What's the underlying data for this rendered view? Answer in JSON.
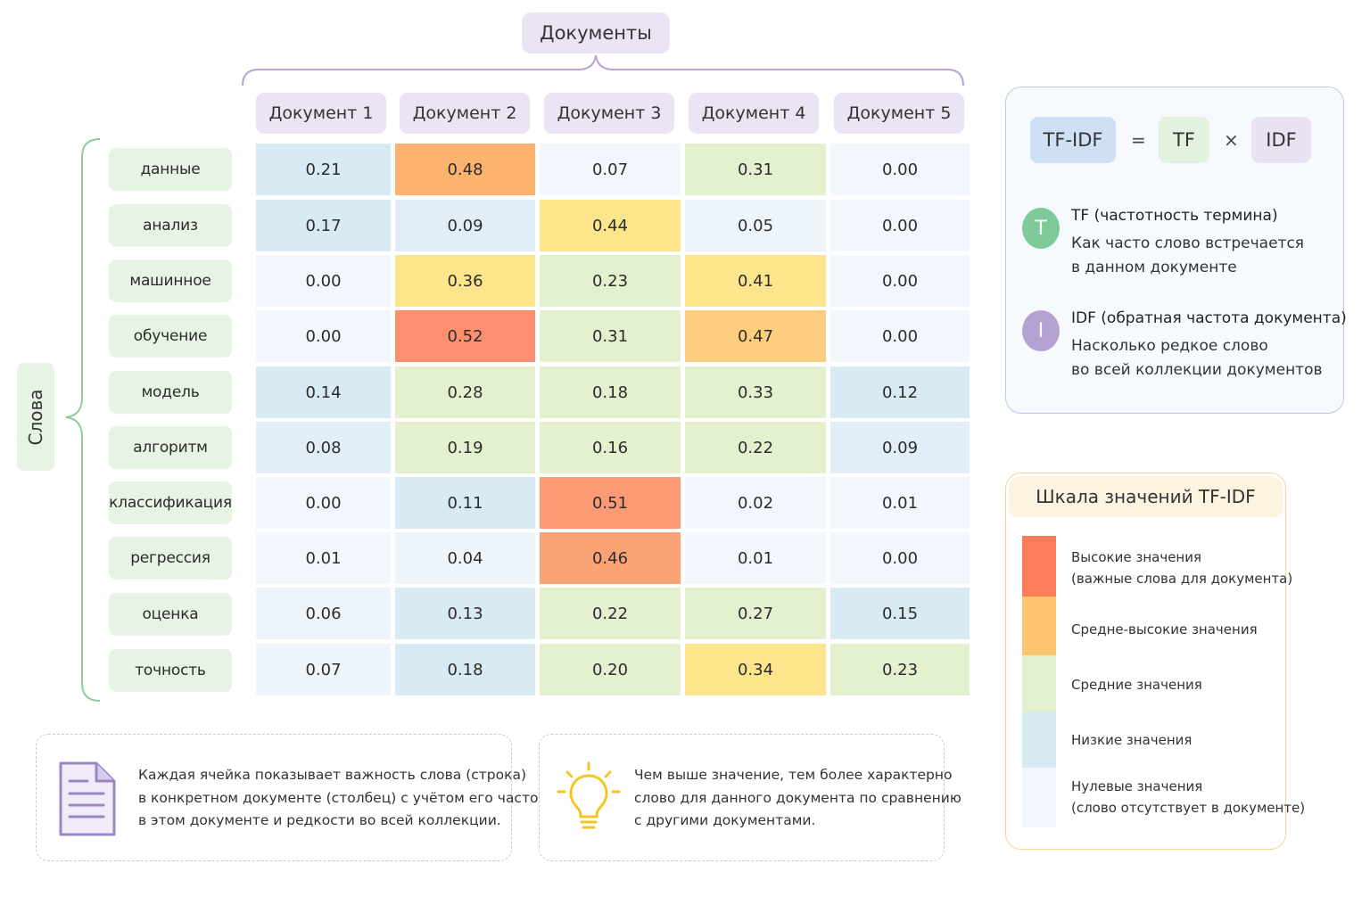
{
  "header": {
    "documents_label": "Документы"
  },
  "axis": {
    "words_label": "Слова"
  },
  "columns": [
    "Документ 1",
    "Документ 2",
    "Документ 3",
    "Документ 4",
    "Документ 5"
  ],
  "rows": [
    "данные",
    "анализ",
    "машинное",
    "обучение",
    "модель",
    "алгоритм",
    "классификация",
    "регрессия",
    "оценка",
    "точность"
  ],
  "chart_data": {
    "type": "heatmap",
    "x_categories": [
      "Документ 1",
      "Документ 2",
      "Документ 3",
      "Документ 4",
      "Документ 5"
    ],
    "y_categories": [
      "данные",
      "анализ",
      "машинное",
      "обучение",
      "модель",
      "алгоритм",
      "классификация",
      "регрессия",
      "оценка",
      "точность"
    ],
    "values": [
      [
        "0.21",
        "0.48",
        "0.07",
        "0.31",
        "0.00"
      ],
      [
        "0.17",
        "0.09",
        "0.44",
        "0.05",
        "0.00"
      ],
      [
        "0.00",
        "0.36",
        "0.23",
        "0.41",
        "0.00"
      ],
      [
        "0.00",
        "0.52",
        "0.31",
        "0.47",
        "0.00"
      ],
      [
        "0.14",
        "0.28",
        "0.18",
        "0.33",
        "0.12"
      ],
      [
        "0.08",
        "0.19",
        "0.16",
        "0.22",
        "0.09"
      ],
      [
        "0.00",
        "0.11",
        "0.51",
        "0.02",
        "0.01"
      ],
      [
        "0.01",
        "0.04",
        "0.46",
        "0.01",
        "0.00"
      ],
      [
        "0.06",
        "0.13",
        "0.22",
        "0.27",
        "0.15"
      ],
      [
        "0.07",
        "0.18",
        "0.20",
        "0.34",
        "0.23"
      ]
    ],
    "cell_colors": [
      [
        "#d8eaf3",
        "#fbb36e",
        "#f1f7fc",
        "#e3f1cf",
        "#f1f7fc"
      ],
      [
        "#d8eaf3",
        "#e1eef7",
        "#fde58c",
        "#edf5fb",
        "#f1f7fc"
      ],
      [
        "#f1f7fc",
        "#fde58c",
        "#e3f1cf",
        "#fde58c",
        "#f1f7fc"
      ],
      [
        "#f1f7fc",
        "#fb8f70",
        "#e3f1cf",
        "#fdcd7f",
        "#f1f7fc"
      ],
      [
        "#d8eaf3",
        "#e3f1cf",
        "#e3f1cf",
        "#e3f1cf",
        "#d8eaf3"
      ],
      [
        "#e1eef7",
        "#e3f1cf",
        "#e3f1cf",
        "#e3f1cf",
        "#e1eef7"
      ],
      [
        "#f1f7fc",
        "#d8eaf3",
        "#fc9a76",
        "#f1f7fc",
        "#f1f7fc"
      ],
      [
        "#f1f7fc",
        "#edf5fb",
        "#fca277",
        "#f1f7fc",
        "#f1f7fc"
      ],
      [
        "#edf5fb",
        "#d8eaf3",
        "#e3f1cf",
        "#e3f1cf",
        "#d8eaf3"
      ],
      [
        "#edf5fb",
        "#d8eaf3",
        "#e3f1cf",
        "#fde58c",
        "#e3f1cf"
      ]
    ]
  },
  "formula": {
    "lhs": "TF-IDF",
    "eq": "=",
    "tf": "TF",
    "times": "×",
    "idf": "IDF"
  },
  "definitions": {
    "tf": {
      "badge": "T",
      "title": "TF (частотность термина)",
      "line1": "Как часто слово встречается",
      "line2": "в данном документе"
    },
    "idf": {
      "badge": "I",
      "title": "IDF (обратная частота документа)",
      "line1": "Насколько редкое слово",
      "line2": "во всей коллекции документов"
    }
  },
  "scale": {
    "title": "Шкала значений TF-IDF",
    "levels": [
      {
        "label": "Высокие значения",
        "sub": "(важные слова для документа)",
        "color": "#fb7d5a"
      },
      {
        "label": "Средне-высокие значения",
        "sub": "",
        "color": "#fdc56f"
      },
      {
        "label": "Средние значения",
        "sub": "",
        "color": "#e3f1cf"
      },
      {
        "label": "Низкие значения",
        "sub": "",
        "color": "#d8eaf3"
      },
      {
        "label": "Нулевые значения",
        "sub": "(слово отсутствует в документе)",
        "color": "#f1f7fc"
      }
    ]
  },
  "notes": {
    "doc_icon": "document-icon",
    "bulb_icon": "lightbulb-icon",
    "left": [
      "Каждая ячейка показывает важность слова (строка)",
      "в конкретном документе (столбец) с учётом его частоты",
      "в этом документе и редкости во всей коллекции."
    ],
    "right": [
      "Чем выше значение, тем более характерно",
      "слово для данного документа по сравнению",
      "с другими документами."
    ]
  },
  "colors": {
    "header_pill": "#ebe4f4",
    "row_pill": "#e7f3e4",
    "tf_badge": "#7fc99a",
    "idf_badge": "#b5a1d3",
    "formula_lhs": "#cfe0f4",
    "formula_tf": "#e3f2df",
    "formula_idf": "#e9e2f3"
  }
}
